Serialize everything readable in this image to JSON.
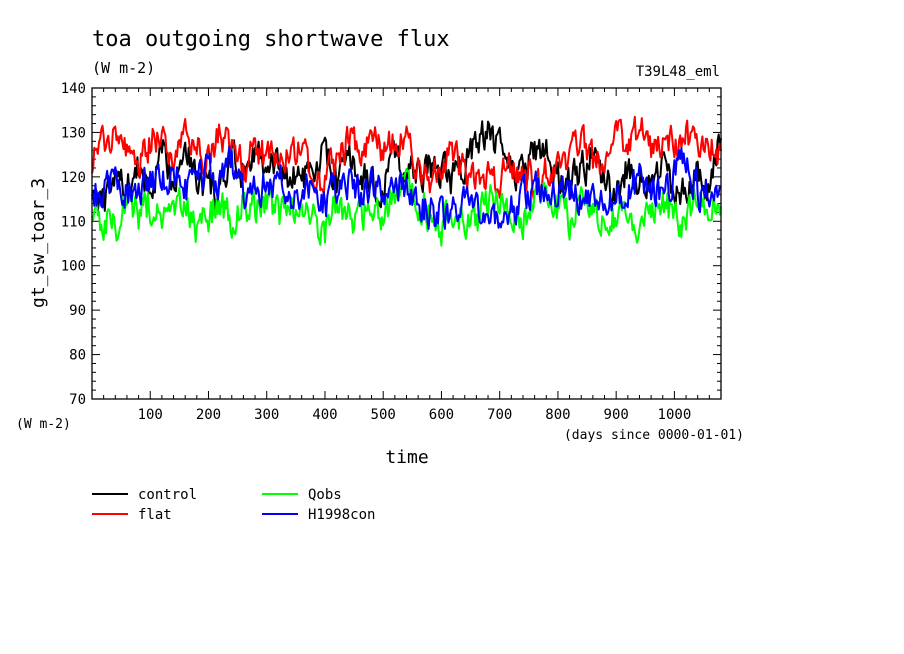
{
  "chart_data": {
    "type": "line",
    "title": "toa outgoing shortwave flux",
    "units": "(W m-2)",
    "experiment": "T39L48_eml",
    "xlabel": "time",
    "xunits": "(days since 0000-01-01)",
    "ylabel": "gt_sw_toar_3",
    "yunits": "(W m-2)",
    "xlim": [
      0,
      1080
    ],
    "ylim": [
      70,
      140
    ],
    "xticks": [
      100,
      200,
      300,
      400,
      500,
      600,
      700,
      800,
      900,
      1000
    ],
    "yticks": [
      70,
      80,
      90,
      100,
      110,
      120,
      130,
      140
    ],
    "x": [
      0,
      20,
      40,
      60,
      80,
      100,
      120,
      140,
      160,
      180,
      200,
      220,
      240,
      260,
      280,
      300,
      320,
      340,
      360,
      380,
      400,
      420,
      440,
      460,
      480,
      500,
      520,
      540,
      560,
      580,
      600,
      620,
      640,
      660,
      680,
      700,
      720,
      740,
      760,
      780,
      800,
      820,
      840,
      860,
      880,
      900,
      920,
      940,
      960,
      980,
      1000,
      1020,
      1040,
      1060,
      1080
    ],
    "series": [
      {
        "name": "control",
        "color": "#000000",
        "values": [
          118,
          113,
          120,
          117,
          122,
          116,
          125,
          120,
          128,
          119,
          118,
          115,
          124,
          121,
          127,
          120,
          123,
          119,
          121,
          118,
          126,
          118,
          124,
          120,
          119,
          117,
          125,
          122,
          120,
          123,
          121,
          119,
          124,
          128,
          130,
          126,
          122,
          120,
          125,
          128,
          120,
          118,
          121,
          125,
          119,
          116,
          123,
          120,
          118,
          122,
          117,
          119,
          121,
          116,
          130
        ]
      },
      {
        "name": "flat",
        "color": "#ff0000",
        "values": [
          124,
          127,
          132,
          125,
          122,
          128,
          130,
          124,
          131,
          126,
          125,
          129,
          127,
          122,
          126,
          124,
          123,
          128,
          125,
          121,
          119,
          124,
          128,
          126,
          129,
          125,
          128,
          130,
          122,
          119,
          122,
          125,
          121,
          118,
          122,
          119,
          123,
          120,
          118,
          121,
          122,
          125,
          128,
          123,
          124,
          129,
          126,
          131,
          125,
          129,
          127,
          130,
          125,
          128,
          124
        ]
      },
      {
        "name": "Qobs",
        "color": "#00ff00",
        "values": [
          113,
          110,
          108,
          115,
          112,
          114,
          109,
          111,
          113,
          108,
          112,
          114,
          110,
          116,
          112,
          114,
          111,
          113,
          112,
          110,
          108,
          113,
          110,
          111,
          114,
          112,
          116,
          118,
          114,
          112,
          109,
          113,
          110,
          111,
          115,
          117,
          113,
          111,
          116,
          114,
          112,
          110,
          115,
          113,
          112,
          110,
          113,
          109,
          115,
          113,
          112,
          110,
          116,
          113,
          111
        ]
      },
      {
        "name": "H1998con",
        "color": "#0000ff",
        "values": [
          117,
          115,
          119,
          118,
          116,
          120,
          118,
          122,
          117,
          119,
          121,
          118,
          124,
          116,
          119,
          117,
          120,
          115,
          118,
          119,
          114,
          117,
          119,
          116,
          118,
          117,
          120,
          116,
          114,
          112,
          111,
          113,
          114,
          115,
          111,
          109,
          113,
          116,
          118,
          119,
          115,
          117,
          114,
          116,
          115,
          114,
          117,
          119,
          116,
          118,
          120,
          123,
          117,
          116,
          115
        ]
      }
    ]
  }
}
